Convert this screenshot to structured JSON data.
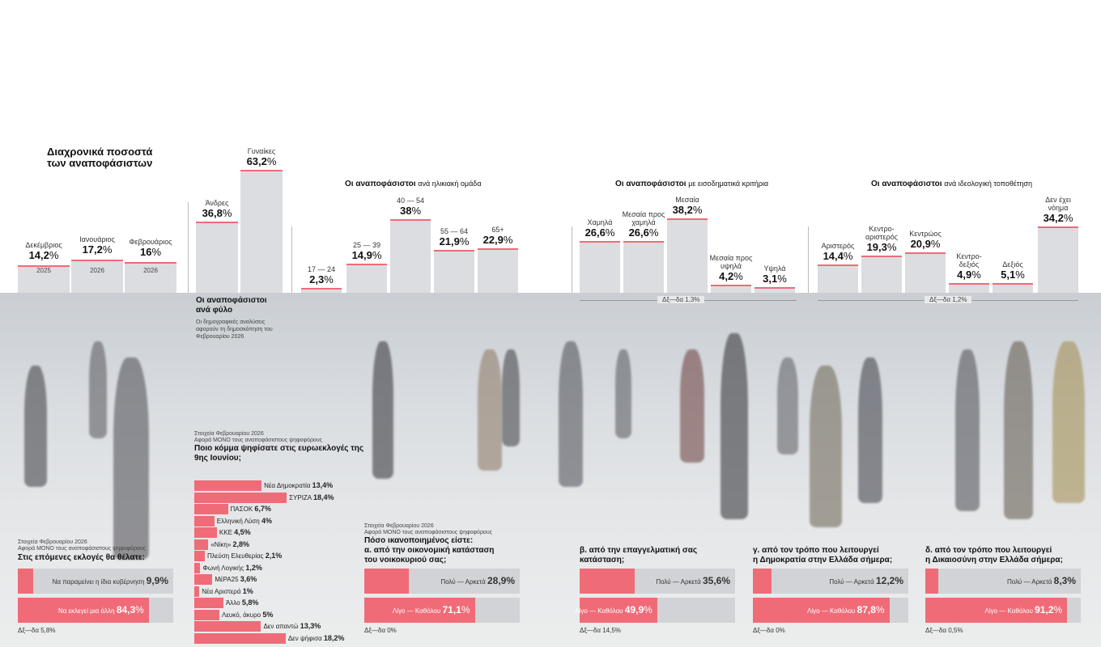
{
  "timeline": {
    "title_l1": "Διαχρονικά ποσοστά",
    "title_l2": "των αναποφάσιστων",
    "bars": [
      {
        "month": "Δεκέμβριος",
        "value": 14.2,
        "text": "14,2",
        "year": "2025"
      },
      {
        "month": "Ιανουάριος",
        "value": 17.2,
        "text": "17,2",
        "year": "2026"
      },
      {
        "month": "Φεβρουάριος",
        "value": 16,
        "text": "16",
        "year": "2026"
      }
    ]
  },
  "gender": {
    "bars": [
      {
        "label": "Άνδρες",
        "value": 36.8,
        "text": "36,8"
      },
      {
        "label": "Γυναίκες",
        "value": 63.2,
        "text": "63,2"
      }
    ],
    "title_l1": "Οι αναποφάσιστοι",
    "title_l2": "ανά φύλο",
    "note": "Οι δημογραφικές αναλύσεις αφορούν τη δημοσκόπηση του Φεβρουαρίου 2026"
  },
  "age": {
    "title": "Οι αναποφάσιστοι",
    "subtitle": "ανά ηλικιακή ομάδα",
    "bars": [
      {
        "label": "17 — 24",
        "value": 2.3,
        "text": "2,3"
      },
      {
        "label": "25 — 39",
        "value": 14.9,
        "text": "14,9"
      },
      {
        "label": "40 — 54",
        "value": 38,
        "text": "38"
      },
      {
        "label": "55 — 64",
        "value": 21.9,
        "text": "21,9"
      },
      {
        "label": "65+",
        "value": 22.9,
        "text": "22,9"
      }
    ]
  },
  "income": {
    "title": "Οι αναποφάσιστοι",
    "subtitle": "με εισοδηματικά κριτήρια",
    "bars": [
      {
        "label": "Χαμηλά",
        "value": 26.6,
        "text": "26,6"
      },
      {
        "label": "Μεσαία προς χαμηλά",
        "value": 26.6,
        "text": "26,6"
      },
      {
        "label": "Μεσαία",
        "value": 38.2,
        "text": "38,2"
      },
      {
        "label": "Μεσαία προς υψηλά",
        "value": 4.2,
        "text": "4,2"
      },
      {
        "label": "Υψηλά",
        "value": 3.1,
        "text": "3,1"
      }
    ],
    "dkna": "Δξ—δα 1,3%"
  },
  "ideology": {
    "title": "Οι αναποφάσιστοι",
    "subtitle": "ανά ιδεολογική τοποθέτηση",
    "bars": [
      {
        "label": "Αριστερός",
        "value": 14.4,
        "text": "14,4"
      },
      {
        "label": "Κεντρο- αριστερός",
        "value": 19.3,
        "text": "19,3"
      },
      {
        "label": "Κεντρώος",
        "value": 20.9,
        "text": "20,9"
      },
      {
        "label": "Κεντρο- δεξιός",
        "value": 4.9,
        "text": "4,9"
      },
      {
        "label": "Δεξιός",
        "value": 5.1,
        "text": "5,1"
      },
      {
        "label": "Δεν έχει νόημα",
        "value": 34.2,
        "text": "34,2"
      }
    ],
    "dkna": "Δξ—δα 1,2%"
  },
  "pct": "%",
  "euro": {
    "note1": "Στοιχεία Φεβρουαρίου 2026",
    "note2": "Αφορά ΜΟΝΟ τους αναποφάσιστους ψηφοφόρους",
    "title": "Ποιο κόμμα ψηφίσατε στις ευρωεκλογές της 9ης Ιουνίου;",
    "bars": [
      {
        "label": "Νέα Δημοκρατία",
        "text": "13,4%",
        "value": 13.4
      },
      {
        "label": "ΣΥΡΙΖΑ",
        "text": "18,4%",
        "value": 18.4
      },
      {
        "label": "ΠΑΣΟΚ",
        "text": "6,7%",
        "value": 6.7
      },
      {
        "label": "Ελληνική Λύση",
        "text": "4%",
        "value": 4
      },
      {
        "label": "ΚΚΕ",
        "text": "4,5%",
        "value": 4.5
      },
      {
        "label": "«Νίκη»",
        "text": "2,8%",
        "value": 2.8
      },
      {
        "label": "Πλεύση Ελευθερίας",
        "text": "2,1%",
        "value": 2.1
      },
      {
        "label": "Φωνή Λογικής",
        "text": "1,2%",
        "value": 1.2
      },
      {
        "label": "ΜέΡΑ25",
        "text": "3,6%",
        "value": 3.6
      },
      {
        "label": "Νέα Αριστερά",
        "text": "1%",
        "value": 1
      },
      {
        "label": "Άλλο",
        "text": "5,8%",
        "value": 5.8
      },
      {
        "label": "Λευκό, άκυρο",
        "text": "5%",
        "value": 5
      },
      {
        "label": "Δεν απαντώ",
        "text": "13,3%",
        "value": 13.3
      },
      {
        "label": "Δεν ψήφισα",
        "text": "18,2%",
        "value": 18.2
      }
    ]
  },
  "next": {
    "note1": "Στοιχεία Φεβρουαρίου 2026",
    "note2": "Αφορά ΜΟΝΟ τους αναποφάσιστους ψηφοφόρους",
    "title": "Στις επόμενες εκλογές θα θέλατε:",
    "rows": [
      {
        "label": "Να παραμείνει η ίδια κυβέρνηση",
        "text": "9,9%",
        "value": 9.9
      },
      {
        "label": "Να εκλεγεί μια άλλη",
        "text": "84,3",
        "value": 84.3
      }
    ],
    "dkna": "Δξ—δα 5,8%"
  },
  "econ": {
    "note1": "Στοιχεία Φεβρουαρίου 2026",
    "note2": "Αφορά ΜΟΝΟ τους αναποφάσιστους ψηφοφόρους",
    "title_l1": "Πόσο ικανοποιημένος είστε:",
    "title_l2": "α. από την οικονομική κατάσταση",
    "title_l3": "του νοικοκυριού σας;",
    "rows": [
      {
        "label": "Πολύ — Αρκετά",
        "text": "28,9%",
        "value": 28.9
      },
      {
        "label": "Λίγο — Καθόλου",
        "text": "71,1",
        "value": 71.1
      }
    ],
    "dkna": "Δξ—δα 0%"
  },
  "prof": {
    "title_l1": "β. από την επαγγελματική σας",
    "title_l2": "κατάσταση;",
    "rows": [
      {
        "label": "Πολύ — Αρκετά",
        "text": "35,6%",
        "value": 35.6
      },
      {
        "label": "Λίγο — Καθόλου",
        "text": "49,9",
        "value": 49.9
      }
    ],
    "dkna": "Δξ—δα 14,5%"
  },
  "demo": {
    "title_l1": "γ. από τον τρόπο που λειτουργεί",
    "title_l2": "η Δημοκρατία στην Ελλάδα σήμερα;",
    "rows": [
      {
        "label": "Πολύ — Αρκετά",
        "text": "12,2%",
        "value": 12.2
      },
      {
        "label": "Λίγο — Καθόλου",
        "text": "87,8",
        "value": 87.8
      }
    ],
    "dkna": "Δξ—δα 0%"
  },
  "just": {
    "title_l1": "δ. από τον τρόπο που λειτουργεί",
    "title_l2": "η Δικαιοσύνη στην Ελλάδα σήμερα;",
    "rows": [
      {
        "label": "Πολύ — Αρκετά",
        "text": "8,3%",
        "value": 8.3
      },
      {
        "label": "Λίγο — Καθόλου",
        "text": "91,2",
        "value": 91.2
      }
    ],
    "dkna": "Δξ—δα 0,5%"
  },
  "chart_data": [
    {
      "type": "bar",
      "title": "Διαχρονικά ποσοστά των αναποφάσιστων",
      "categories": [
        "Δεκέμβριος 2025",
        "Ιανουάριος 2026",
        "Φεβρουάριος 2026"
      ],
      "values": [
        14.2,
        17.2,
        16
      ]
    },
    {
      "type": "bar",
      "title": "Οι αναποφάσιστοι ανά φύλο",
      "categories": [
        "Άνδρες",
        "Γυναίκες"
      ],
      "values": [
        36.8,
        63.2
      ]
    },
    {
      "type": "bar",
      "title": "Οι αναποφάσιστοι ανά ηλικιακή ομάδα",
      "categories": [
        "17 — 24",
        "25 — 39",
        "40 — 54",
        "55 — 64",
        "65+"
      ],
      "values": [
        2.3,
        14.9,
        38,
        21.9,
        22.9
      ]
    },
    {
      "type": "bar",
      "title": "Οι αναποφάσιστοι με εισοδηματικά κριτήρια",
      "categories": [
        "Χαμηλά",
        "Μεσαία προς χαμηλά",
        "Μεσαία",
        "Μεσαία προς υψηλά",
        "Υψηλά"
      ],
      "values": [
        26.6,
        26.6,
        38.2,
        4.2,
        3.1
      ]
    },
    {
      "type": "bar",
      "title": "Οι αναποφάσιστοι ανά ιδεολογική τοποθέτηση",
      "categories": [
        "Αριστερός",
        "Κεντρο- αριστερός",
        "Κεντρώος",
        "Κεντρο- δεξιός",
        "Δεξιός",
        "Δεν έχει νόημα"
      ],
      "values": [
        14.4,
        19.3,
        20.9,
        4.9,
        5.1,
        34.2
      ]
    },
    {
      "type": "bar",
      "title": "Ποιο κόμμα ψηφίσατε στις ευρωεκλογές της 9ης Ιουνίου;",
      "categories": [
        "Νέα Δημοκρατία",
        "ΣΥΡΙΖΑ",
        "ΠΑΣΟΚ",
        "Ελληνική Λύση",
        "ΚΚΕ",
        "«Νίκη»",
        "Πλεύση Ελευθερίας",
        "Φωνή Λογικής",
        "ΜέΡΑ25",
        "Νέα Αριστερά",
        "Άλλο",
        "Λευκό, άκυρο",
        "Δεν απαντώ",
        "Δεν ψήφισα"
      ],
      "values": [
        13.4,
        18.4,
        6.7,
        4,
        4.5,
        2.8,
        2.1,
        1.2,
        3.6,
        1,
        5.8,
        5,
        13.3,
        18.2
      ]
    },
    {
      "type": "bar",
      "title": "Στις επόμενες εκλογές θα θέλατε:",
      "categories": [
        "Να παραμείνει η ίδια κυβέρνηση",
        "Να εκλεγεί μια άλλη"
      ],
      "values": [
        9.9,
        84.3
      ]
    },
    {
      "type": "bar",
      "title": "α. από την οικονομική κατάσταση του νοικοκυριού σας;",
      "categories": [
        "Πολύ — Αρκετά",
        "Λίγο — Καθόλου"
      ],
      "values": [
        28.9,
        71.1
      ]
    },
    {
      "type": "bar",
      "title": "β. από την επαγγελματική σας κατάσταση;",
      "categories": [
        "Πολύ — Αρκετά",
        "Λίγο — Καθόλου"
      ],
      "values": [
        35.6,
        49.9
      ]
    },
    {
      "type": "bar",
      "title": "γ. από τον τρόπο που λειτουργεί η Δημοκρατία στην Ελλάδα σήμερα;",
      "categories": [
        "Πολύ — Αρκετά",
        "Λίγο — Καθόλου"
      ],
      "values": [
        12.2,
        87.8
      ]
    },
    {
      "type": "bar",
      "title": "δ. από τον τρόπο που λειτουργεί η Δικαιοσύνη στην Ελλάδα σήμερα;",
      "categories": [
        "Πολύ — Αρκετά",
        "Λίγο — Καθόλου"
      ],
      "values": [
        8.3,
        91.2
      ]
    }
  ]
}
